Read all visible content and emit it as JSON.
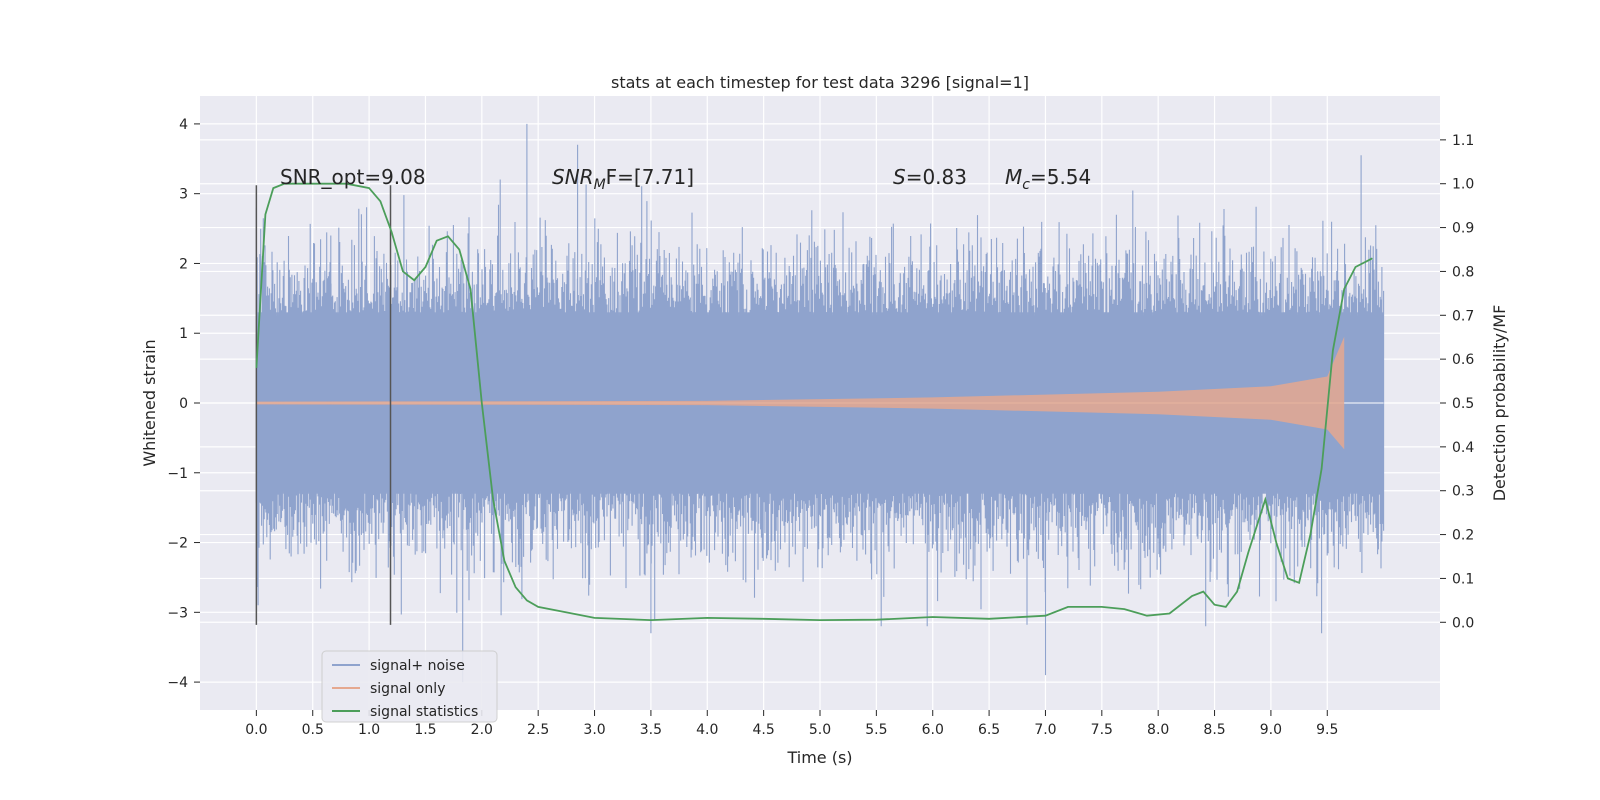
{
  "chart_data": {
    "type": "line",
    "title": "stats at each timestep for test data 3296 [signal=1]",
    "xlabel": "Time (s)",
    "ylabel": "Whitened strain",
    "ylabel_right": "Detection probability/MF",
    "xlim": [
      -0.5,
      10.5
    ],
    "ylim": [
      -4.4,
      4.4
    ],
    "ylim_right": [
      -0.2,
      1.2
    ],
    "x_ticks": [
      "0.0",
      "0.5",
      "1.0",
      "1.5",
      "2.0",
      "2.5",
      "3.0",
      "3.5",
      "4.0",
      "4.5",
      "5.0",
      "5.5",
      "6.0",
      "6.5",
      "7.0",
      "7.5",
      "8.0",
      "8.5",
      "9.0",
      "9.5"
    ],
    "y_ticks": [
      "4",
      "3",
      "2",
      "1",
      "0",
      "−1",
      "−2",
      "−3",
      "−4"
    ],
    "y_ticks_right": [
      "1.1",
      "1.0",
      "0.9",
      "0.8",
      "0.7",
      "0.6",
      "0.5",
      "0.4",
      "0.3",
      "0.2",
      "0.1",
      "0.0"
    ],
    "grid": true,
    "legend_position": "lower-left",
    "annotations": {
      "snr_opt": "SNR_opt=9.08",
      "snr_mf_label": "SNR",
      "snr_mf_sub": "M",
      "snr_mf_value": "F=[7.71]",
      "s_label": "S",
      "s_value": "=0.83",
      "mc_label": "M",
      "mc_sub": "c",
      "mc_value": "=5.54"
    },
    "vertical_markers": [
      0.0,
      1.19
    ],
    "series": [
      {
        "name": "signal+ noise",
        "color": "#8fa3cd",
        "x_range": [
          0.0,
          10.0
        ],
        "amplitude_core": 1.3,
        "extreme_highs": [
          2.4,
          4.0,
          3.7,
          3.55
        ],
        "extreme_lows": [
          -4.0,
          -3.3,
          -3.9,
          -3.3
        ]
      },
      {
        "name": "signal only",
        "color": "#e5a88f",
        "x_range": [
          0.0,
          9.65
        ],
        "envelope_x": [
          0.0,
          4.0,
          6.0,
          8.0,
          9.0,
          9.5,
          9.65
        ],
        "envelope_y": [
          0.02,
          0.03,
          0.08,
          0.16,
          0.24,
          0.38,
          0.95
        ]
      },
      {
        "name": "signal statistics",
        "color": "#4c9e5a",
        "axis": "right",
        "x": [
          0.0,
          0.08,
          0.15,
          0.25,
          0.5,
          0.8,
          1.0,
          1.1,
          1.2,
          1.3,
          1.4,
          1.5,
          1.6,
          1.7,
          1.8,
          1.9,
          2.0,
          2.1,
          2.2,
          2.3,
          2.4,
          2.5,
          2.7,
          3.0,
          3.5,
          4.0,
          4.5,
          5.0,
          5.5,
          6.0,
          6.5,
          7.0,
          7.2,
          7.5,
          7.7,
          7.9,
          8.1,
          8.3,
          8.4,
          8.5,
          8.6,
          8.7,
          8.8,
          8.95,
          9.05,
          9.15,
          9.25,
          9.35,
          9.45,
          9.55,
          9.65,
          9.75,
          9.9
        ],
        "y": [
          0.58,
          0.93,
          0.99,
          1.0,
          1.0,
          1.0,
          0.99,
          0.96,
          0.89,
          0.8,
          0.78,
          0.81,
          0.87,
          0.88,
          0.85,
          0.76,
          0.5,
          0.28,
          0.14,
          0.08,
          0.05,
          0.035,
          0.025,
          0.01,
          0.005,
          0.01,
          0.008,
          0.005,
          0.006,
          0.012,
          0.008,
          0.015,
          0.035,
          0.035,
          0.03,
          0.015,
          0.02,
          0.06,
          0.07,
          0.04,
          0.035,
          0.07,
          0.16,
          0.28,
          0.18,
          0.1,
          0.09,
          0.2,
          0.35,
          0.62,
          0.76,
          0.81,
          0.83
        ]
      }
    ]
  }
}
